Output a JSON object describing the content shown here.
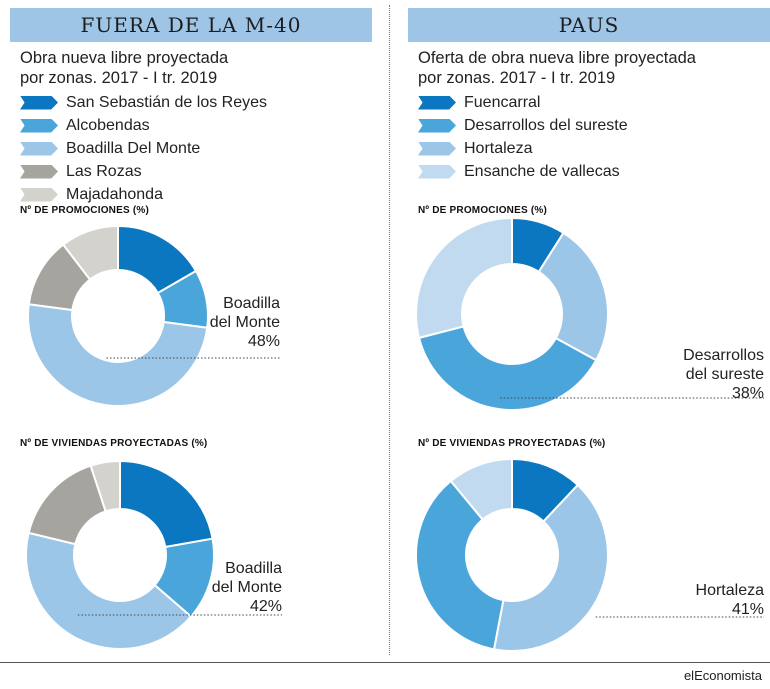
{
  "panels": [
    {
      "header": "FUERA DE LA M-40",
      "subtitle_line1": "Obra nueva libre proyectada",
      "subtitle_line2": "por zonas. 2017 - I tr. 2019",
      "legend": [
        {
          "label": "San Sebastián de los Reyes",
          "color": "#0a77c0"
        },
        {
          "label": "Alcobendas",
          "color": "#4aa5da"
        },
        {
          "label": "Boadilla Del Monte",
          "color": "#9cc6e8"
        },
        {
          "label": "Las Rozas",
          "color": "#a6a49f"
        },
        {
          "label": "Majadahonda",
          "color": "#d4d2cd"
        }
      ]
    },
    {
      "header": "PAUS",
      "subtitle_line1": "Oferta de obra nueva libre proyectada",
      "subtitle_line2": "por zonas. 2017 - I tr. 2019",
      "legend": [
        {
          "label": "Fuencarral",
          "color": "#0a77c0"
        },
        {
          "label": "Desarrollos del sureste",
          "color": "#4aa5da"
        },
        {
          "label": "Hortaleza",
          "color": "#9cc6e8"
        },
        {
          "label": "Ensanche de vallecas",
          "color": "#c2daf0"
        }
      ]
    }
  ],
  "section_titles": {
    "promociones": "Nº DE PROMOCIONES (%)",
    "viviendas": "Nº DE VIVIENDAS PROYECTADAS (%)"
  },
  "chart_data": [
    {
      "type": "pie",
      "panel": "FUERA DE LA M-40",
      "title": "Nº DE PROMOCIONES (%)",
      "categories": [
        "San Sebastián de los Reyes",
        "Alcobendas",
        "Boadilla Del Monte",
        "Las Rozas",
        "Majadahonda"
      ],
      "colors": [
        "#0a77c0",
        "#4aa5da",
        "#9cc6e8",
        "#a6a49f",
        "#d4d2cd"
      ],
      "values": [
        16,
        10,
        48,
        12,
        10
      ],
      "callout": {
        "lines": [
          "Boadilla",
          "del Monte",
          "48%"
        ],
        "index": 2
      }
    },
    {
      "type": "pie",
      "panel": "FUERA DE LA M-40",
      "title": "Nº DE VIVIENDAS PROYECTADAS (%)",
      "categories": [
        "San Sebastián de los Reyes",
        "Alcobendas",
        "Boadilla Del Monte",
        "Las Rozas",
        "Majadahonda"
      ],
      "colors": [
        "#0a77c0",
        "#4aa5da",
        "#9cc6e8",
        "#a6a49f",
        "#d4d2cd"
      ],
      "values": [
        22,
        14,
        42,
        16,
        5
      ],
      "callout": {
        "lines": [
          "Boadilla",
          "del Monte",
          "42%"
        ],
        "index": 2
      }
    },
    {
      "type": "pie",
      "panel": "PAUS",
      "title": "Nº DE PROMOCIONES (%)",
      "categories": [
        "Fuencarral",
        "Hortaleza",
        "Desarrollos del sureste",
        "Ensanche de vallecas"
      ],
      "colors": [
        "#0a77c0",
        "#9cc6e8",
        "#4aa5da",
        "#c2daf0"
      ],
      "values": [
        9,
        24,
        38,
        29
      ],
      "callout": {
        "lines": [
          "Desarrollos",
          "del sureste",
          "38%"
        ],
        "index": 2
      }
    },
    {
      "type": "pie",
      "panel": "PAUS",
      "title": "Nº DE VIVIENDAS PROYECTADAS (%)",
      "categories": [
        "Fuencarral",
        "Hortaleza",
        "Desarrollos del sureste",
        "Ensanche de vallecas"
      ],
      "colors": [
        "#0a77c0",
        "#9cc6e8",
        "#4aa5da",
        "#c2daf0"
      ],
      "values": [
        12,
        41,
        36,
        11
      ],
      "callout": {
        "lines": [
          "Hortaleza",
          "41%"
        ],
        "index": 1
      }
    }
  ],
  "footer": {
    "brand": "elEconomista"
  }
}
